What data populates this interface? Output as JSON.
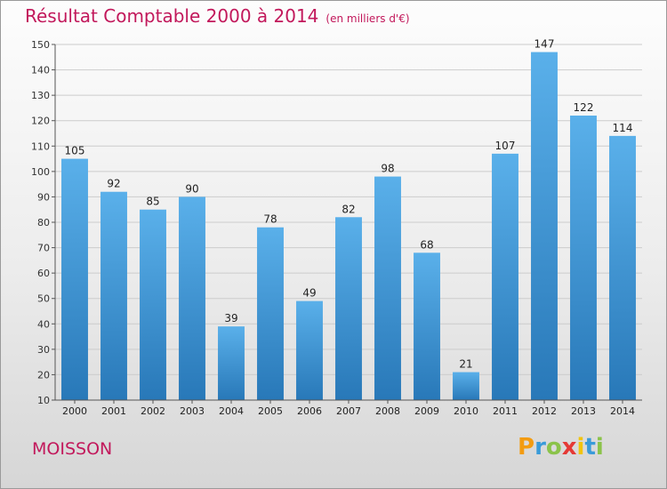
{
  "title": "Résultat Comptable 2000 à 2014",
  "subtitle": "(en milliers d'€)",
  "commune": "MOISSON",
  "logo": {
    "letters": [
      "P",
      "r",
      "o",
      "x",
      "i",
      "t",
      "i"
    ],
    "colors": [
      "#f39c12",
      "#3a9bd9",
      "#8bc34a",
      "#e53935",
      "#f1c40f",
      "#3a9bd9",
      "#8bc34a"
    ]
  },
  "colors": {
    "title": "#c2185b",
    "bar_top": "#5ab0ea",
    "bar_bottom": "#2878b8",
    "grid": "#cccccc",
    "axis": "#555555"
  },
  "chart_data": {
    "type": "bar",
    "title": "Résultat Comptable 2000 à 2014",
    "subtitle": "(en milliers d'€)",
    "xlabel": "",
    "ylabel": "",
    "categories": [
      "2000",
      "2001",
      "2002",
      "2003",
      "2004",
      "2005",
      "2006",
      "2007",
      "2008",
      "2009",
      "2010",
      "2011",
      "2012",
      "2013",
      "2014"
    ],
    "values": [
      105,
      92,
      85,
      90,
      39,
      78,
      49,
      82,
      98,
      68,
      21,
      107,
      147,
      122,
      114
    ],
    "ylim": [
      10,
      150
    ],
    "yticks": [
      10,
      20,
      30,
      40,
      50,
      60,
      70,
      80,
      90,
      100,
      110,
      120,
      130,
      140,
      150
    ],
    "grid": true,
    "data_labels": true
  }
}
